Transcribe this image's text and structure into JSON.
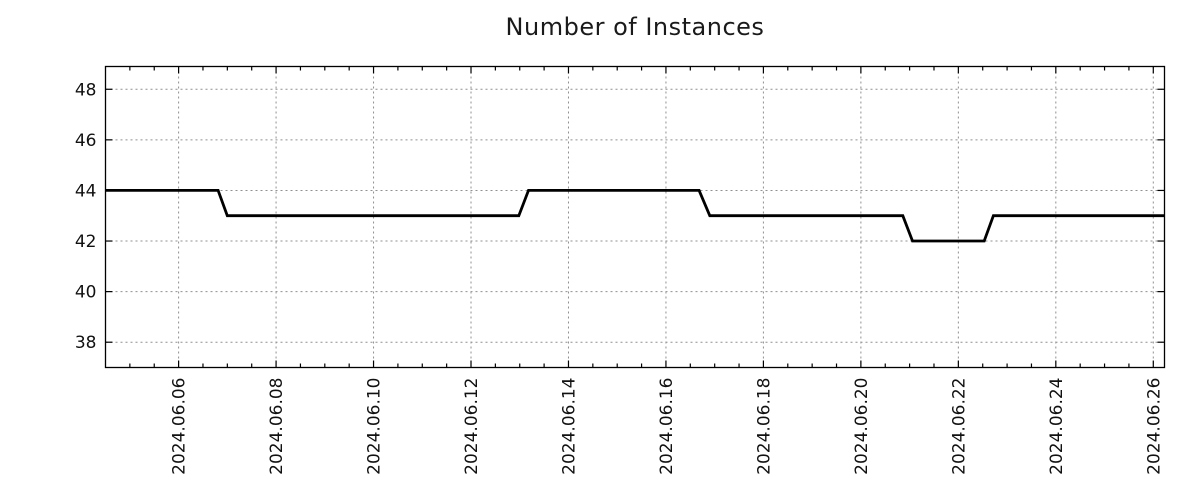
{
  "chart_data": {
    "type": "line",
    "title": "Number of Instances",
    "legend": "none",
    "grid": "dotted",
    "x_axis": {
      "unit": "day of June 2024 (fractional)",
      "lim": [
        4.5,
        26.23
      ],
      "major_tick_days": [
        6,
        8,
        10,
        12,
        14,
        16,
        18,
        20,
        22,
        24,
        26
      ],
      "tick_labels": [
        "2024.06.06",
        "2024.06.08",
        "2024.06.10",
        "2024.06.12",
        "2024.06.14",
        "2024.06.16",
        "2024.06.18",
        "2024.06.20",
        "2024.06.22",
        "2024.06.24",
        "2024.06.26"
      ],
      "minor_tick_step_days": 0.5,
      "label_rotation_deg": -90
    },
    "y_axis": {
      "lim": [
        37.0,
        48.9
      ],
      "ticks": [
        38,
        40,
        42,
        44,
        46,
        48
      ],
      "tick_labels": [
        "38",
        "40",
        "42",
        "44",
        "46",
        "48"
      ]
    },
    "series": [
      {
        "name": "instances",
        "points": [
          [
            4.5,
            44
          ],
          [
            6.81,
            44
          ],
          [
            7.0,
            43
          ],
          [
            12.98,
            43
          ],
          [
            13.18,
            44
          ],
          [
            16.68,
            44
          ],
          [
            16.9,
            43
          ],
          [
            20.86,
            43
          ],
          [
            21.06,
            42
          ],
          [
            22.53,
            42
          ],
          [
            22.72,
            43
          ],
          [
            26.23,
            43
          ]
        ]
      }
    ],
    "style": {
      "line_color": "#000000",
      "line_width": 2.8,
      "grid_color": "#909090",
      "axis_color": "#000000",
      "text_color": "#111111",
      "background": "#ffffff",
      "tick_label_font_px": 17,
      "title_font_px": 24
    }
  }
}
